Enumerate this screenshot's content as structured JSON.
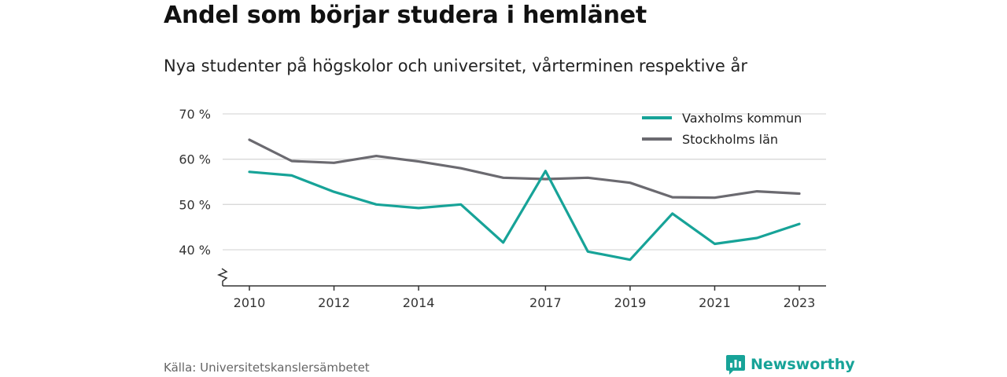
{
  "header": {
    "title": "Andel som börjar studera i hemlänet",
    "subtitle": "Nya studenter på högskolor och universitet, vårterminen respektive år"
  },
  "footer": {
    "source": "Källa: Universitetskanslersämbetet",
    "brand": "Newsworthy"
  },
  "colors": {
    "vaxholm": "#17a398",
    "stockholm": "#6b6a70",
    "grid": "#d9d9d9",
    "axis": "#333333",
    "brand": "#17a398"
  },
  "chart_data": {
    "type": "line",
    "title": "Andel som börjar studera i hemlänet",
    "subtitle": "Nya studenter på högskolor och universitet, vårterminen respektive år",
    "x": [
      2010,
      2011,
      2012,
      2013,
      2014,
      2015,
      2016,
      2017,
      2018,
      2019,
      2020,
      2021,
      2022,
      2023
    ],
    "x_tick_labels": [
      "2010",
      "2012",
      "2014",
      "2017",
      "2019",
      "2021",
      "2023"
    ],
    "y_ticks": [
      40,
      50,
      60,
      70
    ],
    "y_tick_labels": [
      "40 %",
      "50 %",
      "60 %",
      "70 %"
    ],
    "ylim": [
      32,
      70
    ],
    "y_axis_break": true,
    "grid": true,
    "legend_position": "top-right",
    "series": [
      {
        "name": "Vaxholms kommun",
        "color": "#17a398",
        "values": [
          57.2,
          56.4,
          52.8,
          50.0,
          49.2,
          50.0,
          41.6,
          57.4,
          39.6,
          37.8,
          48.0,
          41.3,
          42.6,
          45.7
        ]
      },
      {
        "name": "Stockholms län",
        "color": "#6b6a70",
        "values": [
          64.3,
          59.6,
          59.2,
          60.7,
          59.5,
          58.0,
          55.9,
          55.6,
          55.9,
          54.8,
          51.6,
          51.5,
          52.9,
          52.4
        ]
      }
    ]
  }
}
